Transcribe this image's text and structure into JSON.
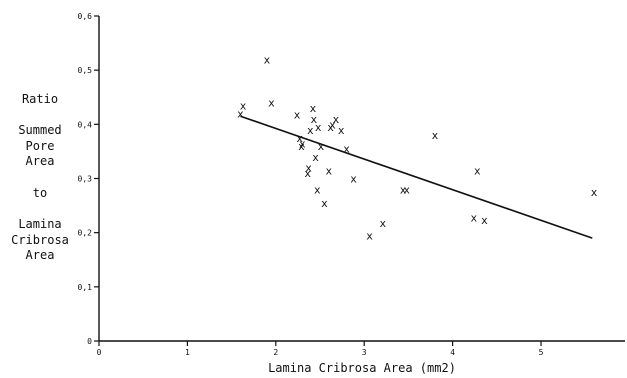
{
  "chart_data": {
    "type": "scatter",
    "title": "",
    "xlabel": "Lamina Cribrosa Area (mm2)",
    "ylabel_lines": [
      "Ratio",
      "Summed",
      "Pore",
      "Area",
      "to",
      "Lamina",
      "Cribrosa",
      "Area"
    ],
    "xlim": [
      0,
      5.95
    ],
    "ylim": [
      0,
      0.6
    ],
    "x_ticks": [
      0,
      1,
      2,
      3,
      4,
      5
    ],
    "x_tick_labels": [
      "0",
      "1",
      "2",
      "3",
      "4",
      "5"
    ],
    "y_ticks": [
      0,
      0.1,
      0.2,
      0.3,
      0.4,
      0.5,
      0.6
    ],
    "y_tick_labels": [
      "0",
      "0,1",
      "0,2",
      "0,3",
      "0,4",
      "0,5",
      "0,6"
    ],
    "marker": "x",
    "grid": false,
    "points": [
      {
        "x": 1.6,
        "y": 0.42
      },
      {
        "x": 1.63,
        "y": 0.435
      },
      {
        "x": 1.9,
        "y": 0.52
      },
      {
        "x": 1.95,
        "y": 0.44
      },
      {
        "x": 2.24,
        "y": 0.418
      },
      {
        "x": 2.27,
        "y": 0.375
      },
      {
        "x": 2.29,
        "y": 0.36
      },
      {
        "x": 2.3,
        "y": 0.365
      },
      {
        "x": 2.36,
        "y": 0.31
      },
      {
        "x": 2.37,
        "y": 0.32
      },
      {
        "x": 2.39,
        "y": 0.39
      },
      {
        "x": 2.42,
        "y": 0.43
      },
      {
        "x": 2.43,
        "y": 0.41
      },
      {
        "x": 2.45,
        "y": 0.34
      },
      {
        "x": 2.47,
        "y": 0.28
      },
      {
        "x": 2.48,
        "y": 0.395
      },
      {
        "x": 2.51,
        "y": 0.36
      },
      {
        "x": 2.55,
        "y": 0.255
      },
      {
        "x": 2.6,
        "y": 0.315
      },
      {
        "x": 2.62,
        "y": 0.395
      },
      {
        "x": 2.64,
        "y": 0.4
      },
      {
        "x": 2.68,
        "y": 0.41
      },
      {
        "x": 2.74,
        "y": 0.39
      },
      {
        "x": 2.8,
        "y": 0.355
      },
      {
        "x": 2.88,
        "y": 0.3
      },
      {
        "x": 3.06,
        "y": 0.195
      },
      {
        "x": 3.21,
        "y": 0.218
      },
      {
        "x": 3.44,
        "y": 0.28
      },
      {
        "x": 3.48,
        "y": 0.28
      },
      {
        "x": 3.8,
        "y": 0.38
      },
      {
        "x": 4.24,
        "y": 0.228
      },
      {
        "x": 4.28,
        "y": 0.315
      },
      {
        "x": 4.36,
        "y": 0.223
      },
      {
        "x": 5.6,
        "y": 0.275
      }
    ],
    "trendline": {
      "x": [
        1.6,
        5.58
      ],
      "y": [
        0.415,
        0.19
      ]
    }
  }
}
